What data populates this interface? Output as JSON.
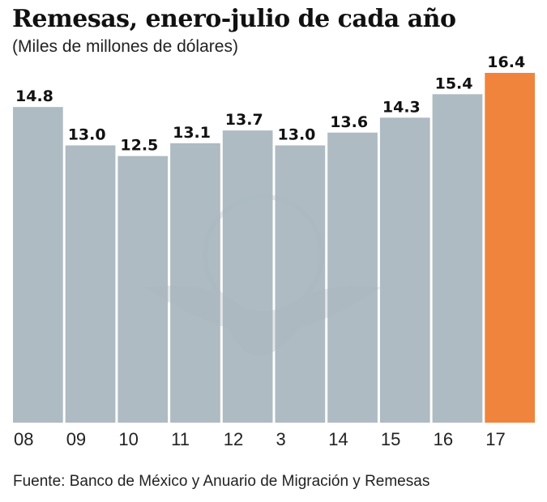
{
  "chart_data": {
    "type": "bar",
    "title": "Remesas, enero-julio de cada año",
    "subtitle": "(Miles de millones de dólares)",
    "categories": [
      "08",
      "09",
      "10",
      "11",
      "12",
      "3",
      "14",
      "15",
      "16",
      "17"
    ],
    "values": [
      14.8,
      13.0,
      12.5,
      13.1,
      13.7,
      13.0,
      13.6,
      14.3,
      15.4,
      16.4
    ],
    "value_labels": [
      "14.8",
      "13.0",
      "12.5",
      "13.1",
      "13.7",
      "13.0",
      "13.6",
      "14.3",
      "15.4",
      "16.4"
    ],
    "highlight_index": 9,
    "colors": {
      "bar": "#a7b5bd",
      "highlight": "#f0843c"
    },
    "xlabel": "",
    "ylabel": "",
    "ylim": [
      0,
      16.4
    ],
    "grid": false,
    "source": "Fuente: Banco de México y Anuario de Migración y Remesas"
  }
}
